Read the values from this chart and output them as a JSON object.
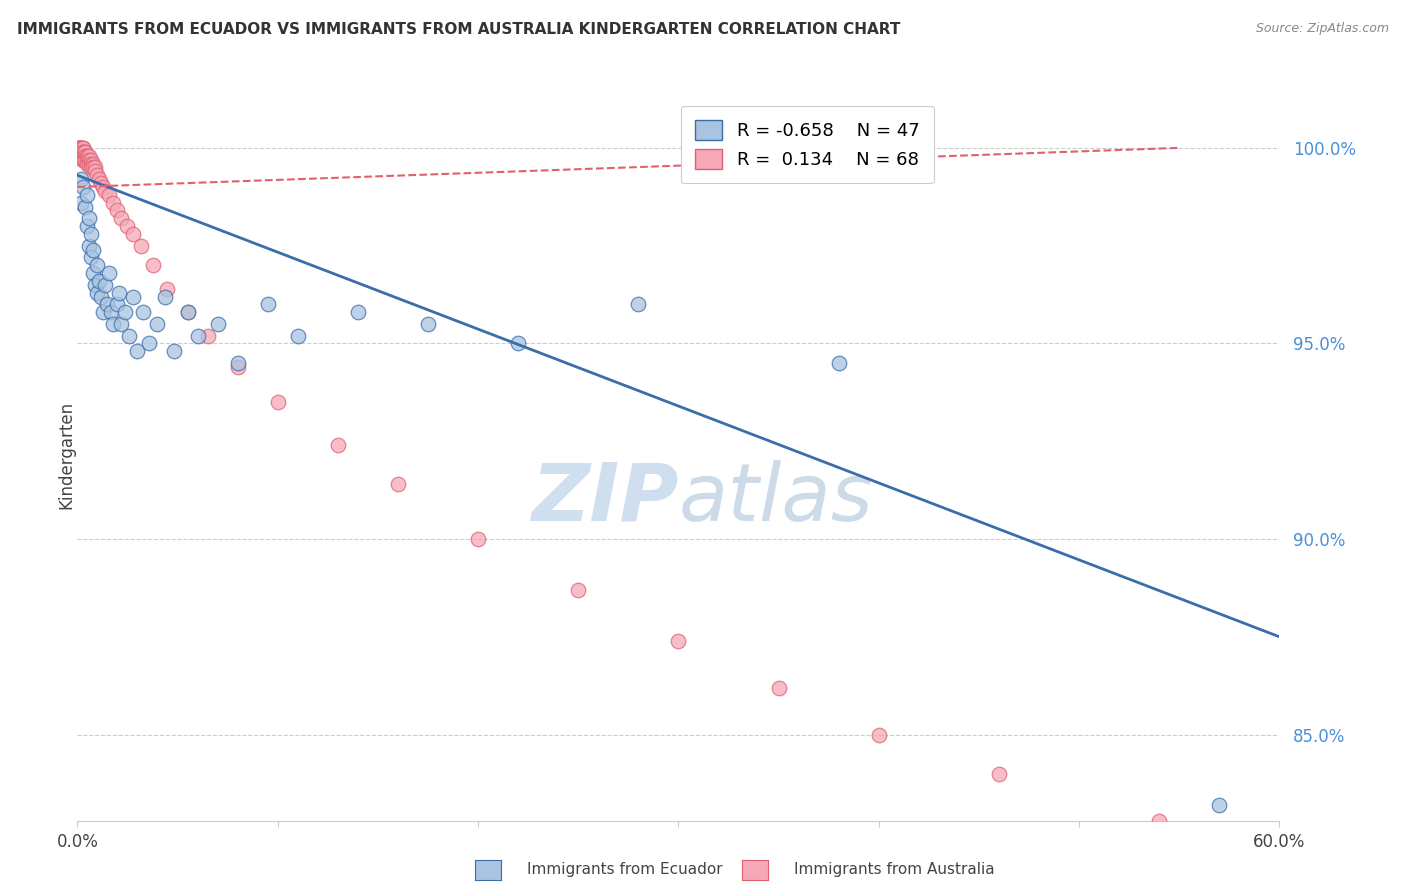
{
  "title": "IMMIGRANTS FROM ECUADOR VS IMMIGRANTS FROM AUSTRALIA KINDERGARTEN CORRELATION CHART",
  "source": "Source: ZipAtlas.com",
  "ylabel": "Kindergarten",
  "ytick_labels": [
    "85.0%",
    "90.0%",
    "95.0%",
    "100.0%"
  ],
  "ytick_values": [
    0.85,
    0.9,
    0.95,
    1.0
  ],
  "xmin": 0.0,
  "xmax": 0.6,
  "ymin": 0.828,
  "ymax": 1.015,
  "legend_r_ecuador": "-0.658",
  "legend_n_ecuador": "47",
  "legend_r_australia": "0.134",
  "legend_n_australia": "68",
  "ecuador_color": "#a8c4e0",
  "australia_color": "#f5a8b8",
  "ecuador_line_color": "#3b6dab",
  "australia_line_color": "#e06070",
  "watermark_color": "#d0dff0",
  "ecuador_x": [
    0.002,
    0.002,
    0.003,
    0.004,
    0.005,
    0.005,
    0.006,
    0.006,
    0.007,
    0.007,
    0.008,
    0.008,
    0.009,
    0.01,
    0.01,
    0.011,
    0.012,
    0.013,
    0.014,
    0.015,
    0.016,
    0.017,
    0.018,
    0.02,
    0.021,
    0.022,
    0.024,
    0.026,
    0.028,
    0.03,
    0.033,
    0.036,
    0.04,
    0.044,
    0.048,
    0.055,
    0.06,
    0.07,
    0.08,
    0.095,
    0.11,
    0.14,
    0.175,
    0.22,
    0.28,
    0.38,
    0.57
  ],
  "ecuador_y": [
    0.992,
    0.986,
    0.99,
    0.985,
    0.98,
    0.988,
    0.975,
    0.982,
    0.972,
    0.978,
    0.968,
    0.974,
    0.965,
    0.97,
    0.963,
    0.966,
    0.962,
    0.958,
    0.965,
    0.96,
    0.968,
    0.958,
    0.955,
    0.96,
    0.963,
    0.955,
    0.958,
    0.952,
    0.962,
    0.948,
    0.958,
    0.95,
    0.955,
    0.962,
    0.948,
    0.958,
    0.952,
    0.955,
    0.945,
    0.96,
    0.952,
    0.958,
    0.955,
    0.95,
    0.96,
    0.945,
    0.832
  ],
  "australia_x": [
    0.001,
    0.001,
    0.001,
    0.001,
    0.001,
    0.001,
    0.002,
    0.002,
    0.002,
    0.002,
    0.002,
    0.002,
    0.002,
    0.002,
    0.002,
    0.003,
    0.003,
    0.003,
    0.003,
    0.003,
    0.003,
    0.003,
    0.004,
    0.004,
    0.004,
    0.004,
    0.004,
    0.005,
    0.005,
    0.005,
    0.005,
    0.006,
    0.006,
    0.006,
    0.007,
    0.007,
    0.007,
    0.008,
    0.008,
    0.009,
    0.009,
    0.01,
    0.011,
    0.012,
    0.013,
    0.014,
    0.016,
    0.018,
    0.02,
    0.022,
    0.025,
    0.028,
    0.032,
    0.038,
    0.045,
    0.055,
    0.065,
    0.08,
    0.1,
    0.13,
    0.16,
    0.2,
    0.25,
    0.3,
    0.35,
    0.4,
    0.46,
    0.54
  ],
  "australia_y": [
    1.0,
    1.0,
    1.0,
    1.0,
    0.999,
    0.999,
    1.0,
    1.0,
    1.0,
    0.999,
    0.999,
    0.999,
    0.998,
    0.998,
    0.998,
    1.0,
    1.0,
    0.999,
    0.999,
    0.998,
    0.997,
    0.997,
    0.999,
    0.999,
    0.998,
    0.997,
    0.997,
    0.998,
    0.998,
    0.997,
    0.996,
    0.998,
    0.997,
    0.996,
    0.997,
    0.996,
    0.995,
    0.996,
    0.995,
    0.995,
    0.994,
    0.993,
    0.992,
    0.991,
    0.99,
    0.989,
    0.988,
    0.986,
    0.984,
    0.982,
    0.98,
    0.978,
    0.975,
    0.97,
    0.964,
    0.958,
    0.952,
    0.944,
    0.935,
    0.924,
    0.914,
    0.9,
    0.887,
    0.874,
    0.862,
    0.85,
    0.84,
    0.828
  ],
  "ecuador_trend_x": [
    0.0,
    0.6
  ],
  "ecuador_trend_y": [
    0.993,
    0.875
  ],
  "australia_trend_x": [
    0.0,
    0.55
  ],
  "australia_trend_y": [
    0.99,
    1.0
  ]
}
